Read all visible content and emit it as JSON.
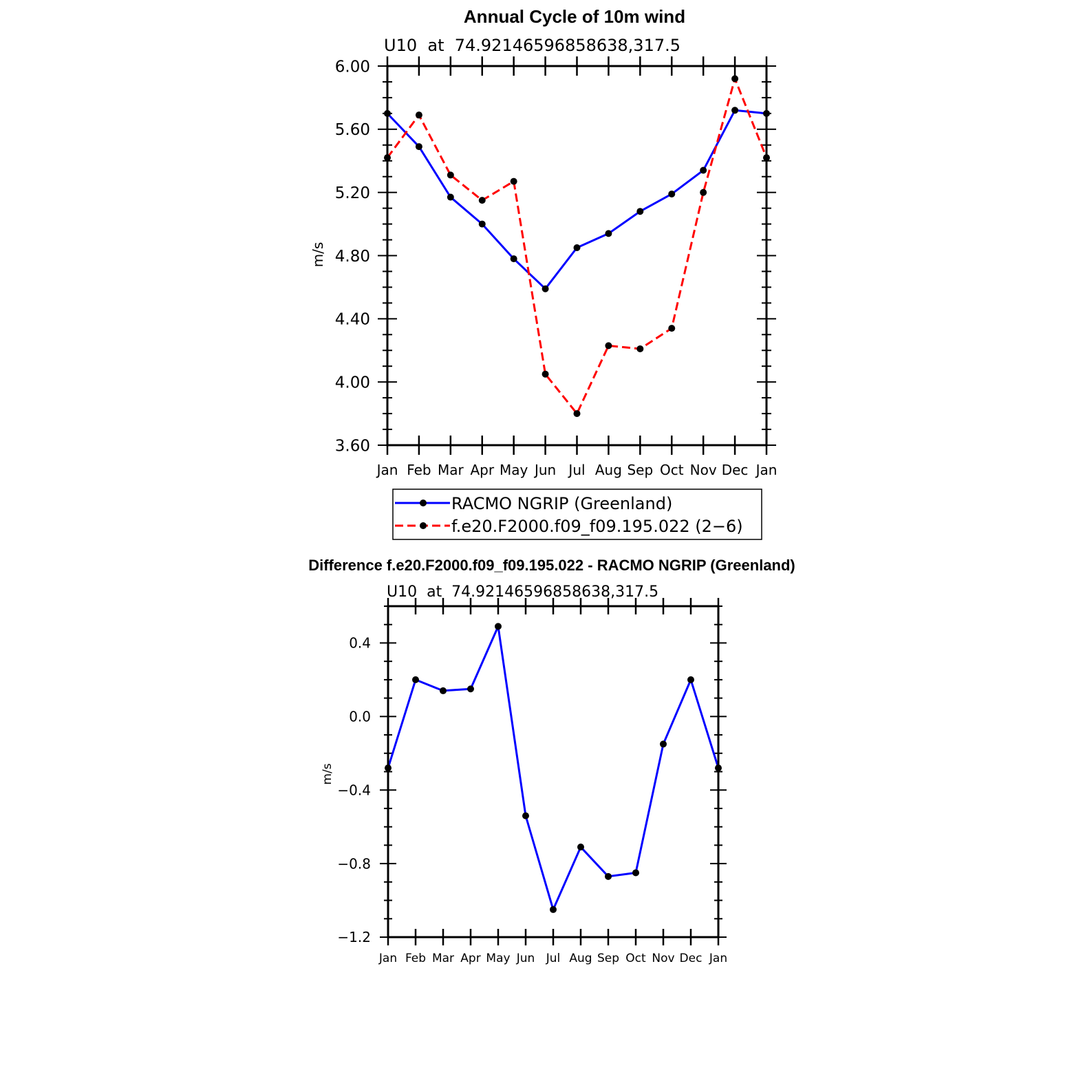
{
  "chart_data": [
    {
      "type": "line",
      "title": "Annual Cycle of 10m wind",
      "subtitle": "U10  at  74.92146596858638,317.5",
      "xlabel": "",
      "ylabel": "m/s",
      "categories": [
        "Jan",
        "Feb",
        "Mar",
        "Apr",
        "May",
        "Jun",
        "Jul",
        "Aug",
        "Sep",
        "Oct",
        "Nov",
        "Dec",
        "Jan"
      ],
      "ylim": [
        3.6,
        6.0
      ],
      "yticks": [
        "3.60",
        "4.00",
        "4.40",
        "4.80",
        "5.20",
        "5.60",
        "6.00"
      ],
      "ytick_values": [
        3.6,
        4.0,
        4.4,
        4.8,
        5.2,
        5.6,
        6.0
      ],
      "grid": false,
      "legend_position": "bottom-center",
      "series": [
        {
          "name": "RACMO NGRIP (Greenland)",
          "color": "#0000ff",
          "dash": "solid",
          "values": [
            5.7,
            5.49,
            5.17,
            5.0,
            4.78,
            4.59,
            4.85,
            4.94,
            5.08,
            5.19,
            5.34,
            5.72,
            5.7
          ]
        },
        {
          "name": "f.e20.F2000.f09_f09.195.022 (2−6)",
          "color": "#ff0000",
          "dash": "dashed",
          "values": [
            5.42,
            5.69,
            5.31,
            5.15,
            5.27,
            4.05,
            3.8,
            4.23,
            4.21,
            4.34,
            5.2,
            5.92,
            5.42
          ]
        }
      ]
    },
    {
      "type": "line",
      "title": "Difference f.e20.F2000.f09_f09.195.022 - RACMO NGRIP (Greenland)",
      "subtitle": "U10  at  74.92146596858638,317.5",
      "xlabel": "",
      "ylabel": "m/s",
      "categories": [
        "Jan",
        "Feb",
        "Mar",
        "Apr",
        "May",
        "Jun",
        "Jul",
        "Aug",
        "Sep",
        "Oct",
        "Nov",
        "Dec",
        "Jan"
      ],
      "ylim": [
        -1.2,
        0.6
      ],
      "yticks": [
        "−1.2",
        "−0.8",
        "−0.4",
        "0.0",
        "0.4"
      ],
      "ytick_values": [
        -1.2,
        -0.8,
        -0.4,
        0.0,
        0.4
      ],
      "grid": false,
      "series": [
        {
          "name": "Difference",
          "color": "#0000ff",
          "dash": "solid",
          "values": [
            -0.28,
            0.2,
            0.14,
            0.15,
            0.49,
            -0.54,
            -1.05,
            -0.71,
            -0.87,
            -0.85,
            -0.15,
            0.2,
            -0.28
          ]
        }
      ]
    }
  ]
}
